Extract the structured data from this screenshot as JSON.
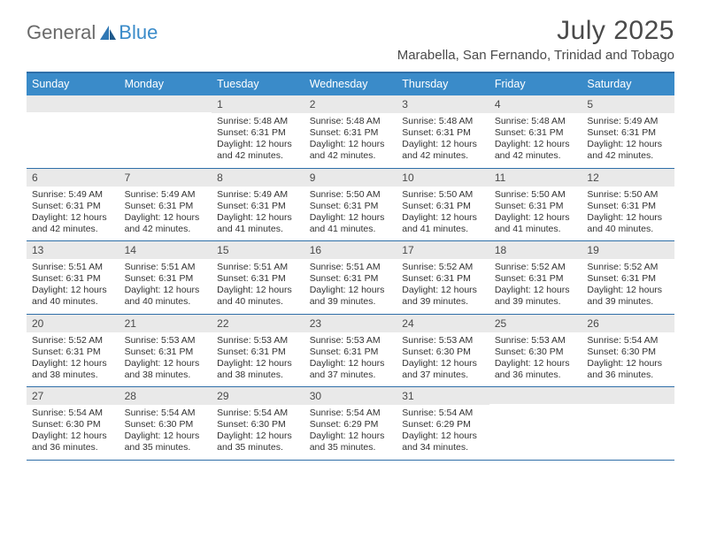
{
  "brand": {
    "word1": "General",
    "word2": "Blue"
  },
  "title": "July 2025",
  "subtitle": "Marabella, San Fernando, Trinidad and Tobago",
  "colors": {
    "header_bg": "#3a8bc9",
    "header_border": "#2f6fa8",
    "daynum_bg": "#e9e9e9",
    "text": "#333333",
    "title_text": "#4a4a4a"
  },
  "day_names": [
    "Sunday",
    "Monday",
    "Tuesday",
    "Wednesday",
    "Thursday",
    "Friday",
    "Saturday"
  ],
  "weeks": [
    [
      null,
      null,
      {
        "n": 1,
        "sunrise": "5:48 AM",
        "sunset": "6:31 PM",
        "daylight": "12 hours and 42 minutes."
      },
      {
        "n": 2,
        "sunrise": "5:48 AM",
        "sunset": "6:31 PM",
        "daylight": "12 hours and 42 minutes."
      },
      {
        "n": 3,
        "sunrise": "5:48 AM",
        "sunset": "6:31 PM",
        "daylight": "12 hours and 42 minutes."
      },
      {
        "n": 4,
        "sunrise": "5:48 AM",
        "sunset": "6:31 PM",
        "daylight": "12 hours and 42 minutes."
      },
      {
        "n": 5,
        "sunrise": "5:49 AM",
        "sunset": "6:31 PM",
        "daylight": "12 hours and 42 minutes."
      }
    ],
    [
      {
        "n": 6,
        "sunrise": "5:49 AM",
        "sunset": "6:31 PM",
        "daylight": "12 hours and 42 minutes."
      },
      {
        "n": 7,
        "sunrise": "5:49 AM",
        "sunset": "6:31 PM",
        "daylight": "12 hours and 42 minutes."
      },
      {
        "n": 8,
        "sunrise": "5:49 AM",
        "sunset": "6:31 PM",
        "daylight": "12 hours and 41 minutes."
      },
      {
        "n": 9,
        "sunrise": "5:50 AM",
        "sunset": "6:31 PM",
        "daylight": "12 hours and 41 minutes."
      },
      {
        "n": 10,
        "sunrise": "5:50 AM",
        "sunset": "6:31 PM",
        "daylight": "12 hours and 41 minutes."
      },
      {
        "n": 11,
        "sunrise": "5:50 AM",
        "sunset": "6:31 PM",
        "daylight": "12 hours and 41 minutes."
      },
      {
        "n": 12,
        "sunrise": "5:50 AM",
        "sunset": "6:31 PM",
        "daylight": "12 hours and 40 minutes."
      }
    ],
    [
      {
        "n": 13,
        "sunrise": "5:51 AM",
        "sunset": "6:31 PM",
        "daylight": "12 hours and 40 minutes."
      },
      {
        "n": 14,
        "sunrise": "5:51 AM",
        "sunset": "6:31 PM",
        "daylight": "12 hours and 40 minutes."
      },
      {
        "n": 15,
        "sunrise": "5:51 AM",
        "sunset": "6:31 PM",
        "daylight": "12 hours and 40 minutes."
      },
      {
        "n": 16,
        "sunrise": "5:51 AM",
        "sunset": "6:31 PM",
        "daylight": "12 hours and 39 minutes."
      },
      {
        "n": 17,
        "sunrise": "5:52 AM",
        "sunset": "6:31 PM",
        "daylight": "12 hours and 39 minutes."
      },
      {
        "n": 18,
        "sunrise": "5:52 AM",
        "sunset": "6:31 PM",
        "daylight": "12 hours and 39 minutes."
      },
      {
        "n": 19,
        "sunrise": "5:52 AM",
        "sunset": "6:31 PM",
        "daylight": "12 hours and 39 minutes."
      }
    ],
    [
      {
        "n": 20,
        "sunrise": "5:52 AM",
        "sunset": "6:31 PM",
        "daylight": "12 hours and 38 minutes."
      },
      {
        "n": 21,
        "sunrise": "5:53 AM",
        "sunset": "6:31 PM",
        "daylight": "12 hours and 38 minutes."
      },
      {
        "n": 22,
        "sunrise": "5:53 AM",
        "sunset": "6:31 PM",
        "daylight": "12 hours and 38 minutes."
      },
      {
        "n": 23,
        "sunrise": "5:53 AM",
        "sunset": "6:31 PM",
        "daylight": "12 hours and 37 minutes."
      },
      {
        "n": 24,
        "sunrise": "5:53 AM",
        "sunset": "6:30 PM",
        "daylight": "12 hours and 37 minutes."
      },
      {
        "n": 25,
        "sunrise": "5:53 AM",
        "sunset": "6:30 PM",
        "daylight": "12 hours and 36 minutes."
      },
      {
        "n": 26,
        "sunrise": "5:54 AM",
        "sunset": "6:30 PM",
        "daylight": "12 hours and 36 minutes."
      }
    ],
    [
      {
        "n": 27,
        "sunrise": "5:54 AM",
        "sunset": "6:30 PM",
        "daylight": "12 hours and 36 minutes."
      },
      {
        "n": 28,
        "sunrise": "5:54 AM",
        "sunset": "6:30 PM",
        "daylight": "12 hours and 35 minutes."
      },
      {
        "n": 29,
        "sunrise": "5:54 AM",
        "sunset": "6:30 PM",
        "daylight": "12 hours and 35 minutes."
      },
      {
        "n": 30,
        "sunrise": "5:54 AM",
        "sunset": "6:29 PM",
        "daylight": "12 hours and 35 minutes."
      },
      {
        "n": 31,
        "sunrise": "5:54 AM",
        "sunset": "6:29 PM",
        "daylight": "12 hours and 34 minutes."
      },
      null,
      null
    ]
  ],
  "labels": {
    "sunrise": "Sunrise:",
    "sunset": "Sunset:",
    "daylight": "Daylight:"
  }
}
